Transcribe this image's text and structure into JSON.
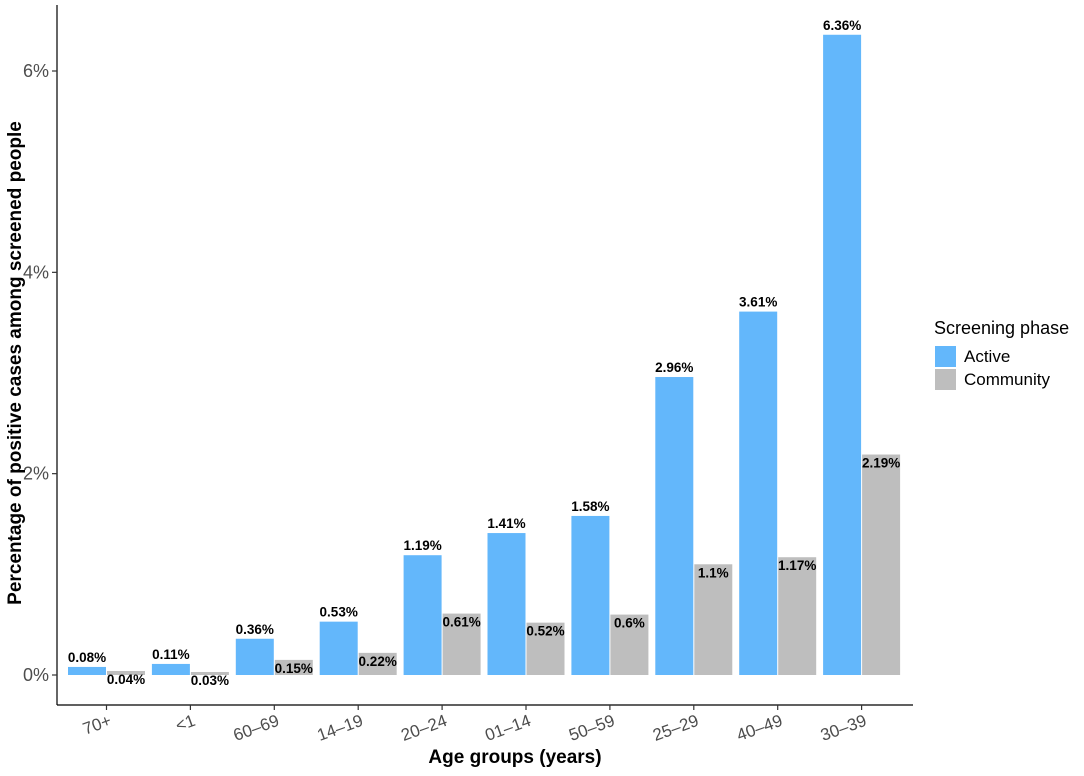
{
  "chart_data": {
    "type": "bar",
    "xlabel": "Age groups (years)",
    "ylabel": "Percentage of positive cases among screened people",
    "categories": [
      "70+",
      "<1",
      "60–69",
      "14–19",
      "20–24",
      "01–14",
      "50–59",
      "25–29",
      "40–49",
      "30–39"
    ],
    "series": [
      {
        "name": "Active",
        "color": "#63b7fb",
        "values": [
          0.08,
          0.11,
          0.36,
          0.53,
          1.19,
          1.41,
          1.58,
          2.96,
          3.61,
          6.36
        ],
        "labels": [
          "0.08%",
          "0.11%",
          "0.36%",
          "0.53%",
          "1.19%",
          "1.41%",
          "1.58%",
          "2.96%",
          "3.61%",
          "6.36%"
        ]
      },
      {
        "name": "Community",
        "color": "#bebebe",
        "values": [
          0.04,
          0.03,
          0.15,
          0.22,
          0.61,
          0.52,
          0.6,
          1.1,
          1.17,
          2.19
        ],
        "labels": [
          "0.04%",
          "0.03%",
          "0.15%",
          "0.22%",
          "0.61%",
          "0.52%",
          "0.6%",
          "1.1%",
          "1.17%",
          "2.19%"
        ]
      }
    ],
    "ylim": [
      -0.3,
      6.7
    ],
    "yticks": [
      0,
      2,
      4,
      6
    ],
    "ytick_labels": [
      "0%",
      "2%",
      "4%",
      "6%"
    ],
    "grid": false,
    "legend": {
      "title": "Screening phase",
      "position": "right"
    }
  }
}
